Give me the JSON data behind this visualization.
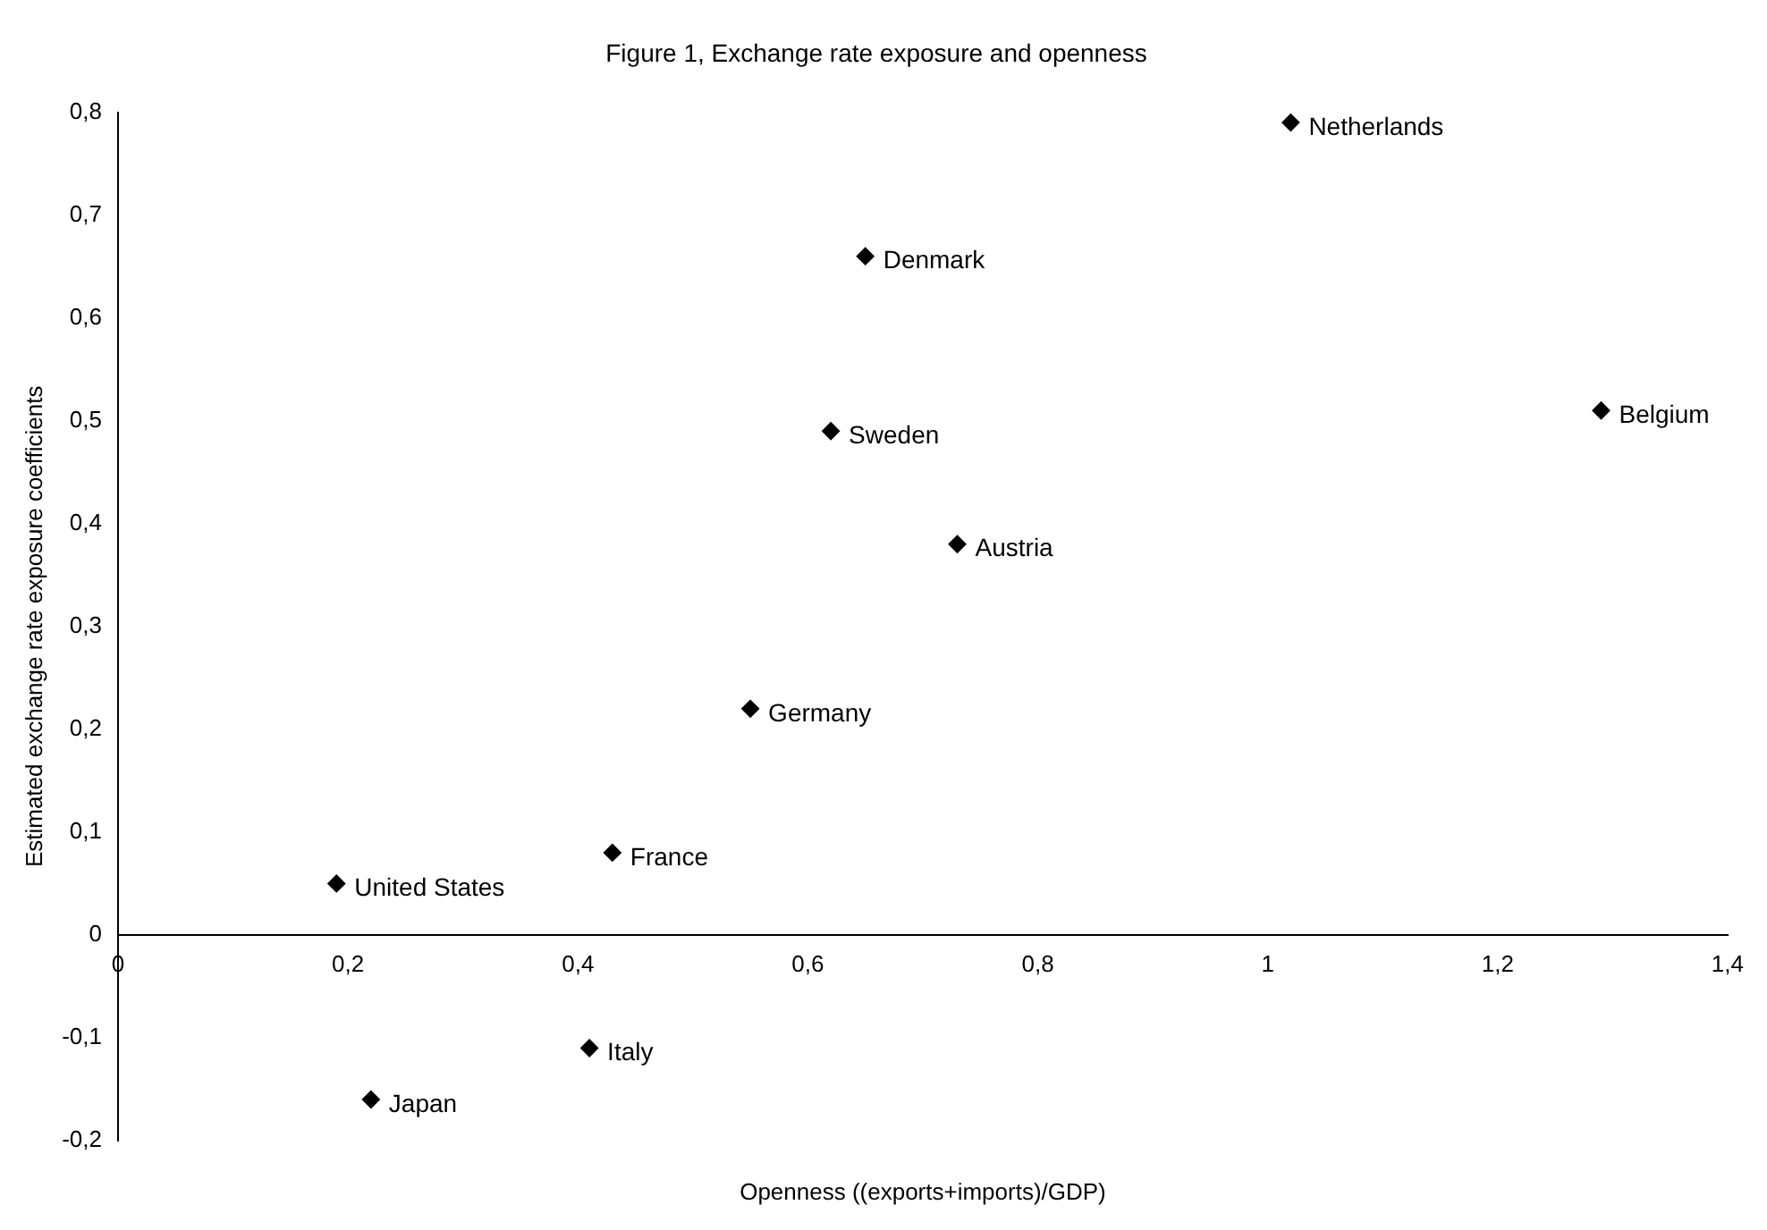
{
  "chart_data": {
    "type": "scatter",
    "title": "Figure 1, Exchange rate exposure and openness",
    "xlabel": "Openness ((exports+imports)/GDP)",
    "ylabel": "Estimated exchange rate exposure coefficients",
    "series": [
      {
        "color": "#000000",
        "x": [
          0.19,
          0.22,
          0.41,
          0.43,
          0.55,
          0.62,
          0.65,
          0.73,
          1.02,
          1.29
        ],
        "values": [
          0.05,
          -0.16,
          -0.11,
          0.08,
          0.22,
          0.49,
          0.66,
          0.38,
          0.79,
          0.51
        ]
      }
    ],
    "annotations": [
      {
        "text": "United States",
        "x": 0.19,
        "y": 0.05
      },
      {
        "text": "Japan",
        "x": 0.22,
        "y": -0.16
      },
      {
        "text": "Italy",
        "x": 0.41,
        "y": -0.11
      },
      {
        "text": "France",
        "x": 0.43,
        "y": 0.08
      },
      {
        "text": "Germany",
        "x": 0.55,
        "y": 0.22
      },
      {
        "text": "Sweden",
        "x": 0.62,
        "y": 0.49
      },
      {
        "text": "Denmark",
        "x": 0.65,
        "y": 0.66
      },
      {
        "text": "Austria",
        "x": 0.73,
        "y": 0.38
      },
      {
        "text": "Netherlands",
        "x": 1.02,
        "y": 0.79
      },
      {
        "text": "Belgium",
        "x": 1.29,
        "y": 0.51
      }
    ],
    "xlim": [
      0,
      1.4
    ],
    "xticks": [
      0,
      {
        "value": 0.2,
        "label": "0,2"
      },
      {
        "value": 0.4,
        "label": "0,4"
      },
      {
        "value": 0.6,
        "label": "0,6"
      },
      {
        "value": 0.8,
        "label": "0,8"
      },
      1,
      {
        "value": 1.2,
        "label": "1,2"
      },
      {
        "value": 1.4,
        "label": "1,4"
      }
    ],
    "ylim": [
      -0.2,
      0.8
    ],
    "yticks": [
      {
        "value": -0.2,
        "label": "-0,2"
      },
      {
        "value": -0.1,
        "label": "-0,1"
      },
      0,
      {
        "value": 0.1,
        "label": "0,1"
      },
      {
        "value": 0.2,
        "label": "0,2"
      },
      {
        "value": 0.3,
        "label": "0,3"
      },
      {
        "value": 0.4,
        "label": "0,4"
      },
      {
        "value": 0.5,
        "label": "0,5"
      },
      {
        "value": 0.6,
        "label": "0,6"
      },
      {
        "value": 0.7,
        "label": "0,7"
      },
      {
        "value": 0.8,
        "label": "0,8"
      }
    ],
    "grid": false,
    "legend": false,
    "marker": "diamond"
  }
}
